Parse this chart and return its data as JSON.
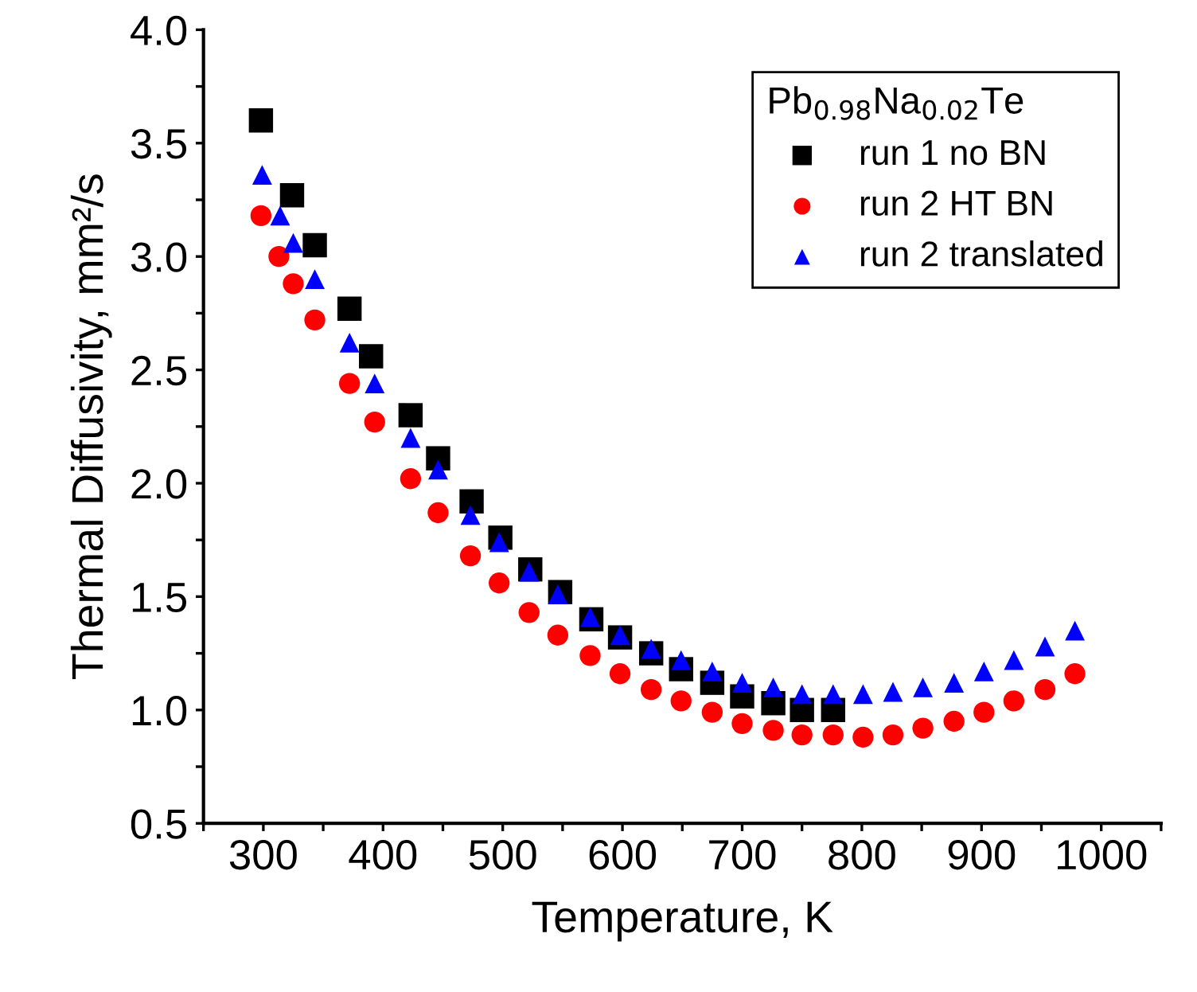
{
  "chart_data": {
    "type": "scatter",
    "xlabel": "Temperature, K",
    "ylabel": "Thermal Diffusivity, mm²/s",
    "legend_title": "Pb$_{0.98}$Na$_{0.02}$Te",
    "series": [
      {
        "name": "run 1 no BN",
        "color": "#000000",
        "marker": "square",
        "x": [
          298,
          324,
          343,
          372,
          390,
          423,
          446,
          474,
          498,
          523,
          548,
          574,
          598,
          624,
          649,
          675,
          700,
          726,
          750,
          776
        ],
        "values": [
          3.6,
          3.27,
          3.05,
          2.77,
          2.56,
          2.3,
          2.11,
          1.92,
          1.76,
          1.62,
          1.52,
          1.4,
          1.32,
          1.25,
          1.18,
          1.12,
          1.06,
          1.03,
          1.0,
          1.0
        ]
      },
      {
        "name": "run 2 HT BN",
        "color": "#ff0000",
        "marker": "circle",
        "x": [
          298,
          313,
          325,
          343,
          372,
          393,
          423,
          446,
          473,
          497,
          522,
          546,
          573,
          598,
          624,
          649,
          675,
          700,
          726,
          750,
          776,
          801,
          826,
          851,
          877,
          902,
          927,
          953,
          978
        ],
        "values": [
          3.18,
          3.0,
          2.88,
          2.72,
          2.44,
          2.27,
          2.02,
          1.87,
          1.68,
          1.56,
          1.43,
          1.33,
          1.24,
          1.16,
          1.09,
          1.04,
          0.99,
          0.94,
          0.91,
          0.89,
          0.89,
          0.88,
          0.89,
          0.92,
          0.95,
          0.99,
          1.04,
          1.09,
          1.16
        ]
      },
      {
        "name": "run 2 translated",
        "color": "#0000ff",
        "marker": "triangle",
        "x": [
          299,
          314,
          325,
          343,
          372,
          393,
          423,
          446,
          473,
          497,
          522,
          546,
          573,
          598,
          624,
          649,
          675,
          700,
          726,
          750,
          776,
          801,
          826,
          851,
          877,
          902,
          927,
          953,
          978
        ],
        "values": [
          3.36,
          3.18,
          3.06,
          2.9,
          2.62,
          2.44,
          2.2,
          2.06,
          1.86,
          1.74,
          1.61,
          1.51,
          1.41,
          1.33,
          1.27,
          1.22,
          1.17,
          1.12,
          1.1,
          1.07,
          1.07,
          1.07,
          1.08,
          1.1,
          1.12,
          1.17,
          1.22,
          1.28,
          1.35
        ]
      }
    ],
    "xlim": [
      250,
      1050
    ],
    "ylim": [
      0.5,
      4.0
    ],
    "xticks": [
      {
        "value": 250,
        "label": null
      },
      300,
      {
        "value": 350,
        "label": null
      },
      400,
      {
        "value": 450,
        "label": null
      },
      500,
      {
        "value": 550,
        "label": null
      },
      600,
      {
        "value": 650,
        "label": null
      },
      700,
      {
        "value": 750,
        "label": null
      },
      800,
      {
        "value": 850,
        "label": null
      },
      900,
      {
        "value": 950,
        "label": null
      },
      1000,
      {
        "value": 1050,
        "label": null
      }
    ],
    "yticks": [
      {
        "value": 0.5,
        "label": "0.5"
      },
      {
        "value": 0.75,
        "label": null
      },
      {
        "value": 1.0,
        "label": "1.0"
      },
      {
        "value": 1.25,
        "label": null
      },
      {
        "value": 1.5,
        "label": "1.5"
      },
      {
        "value": 1.75,
        "label": null
      },
      {
        "value": 2.0,
        "label": "2.0"
      },
      {
        "value": 2.25,
        "label": null
      },
      {
        "value": 2.5,
        "label": "2.5"
      },
      {
        "value": 2.75,
        "label": null
      },
      {
        "value": 3.0,
        "label": "3.0"
      },
      {
        "value": 3.25,
        "label": null
      },
      {
        "value": 3.5,
        "label": "3.5"
      },
      {
        "value": 3.75,
        "label": null
      },
      {
        "value": 4.0,
        "label": "4.0"
      }
    ],
    "grid": false,
    "legend": "top right"
  }
}
